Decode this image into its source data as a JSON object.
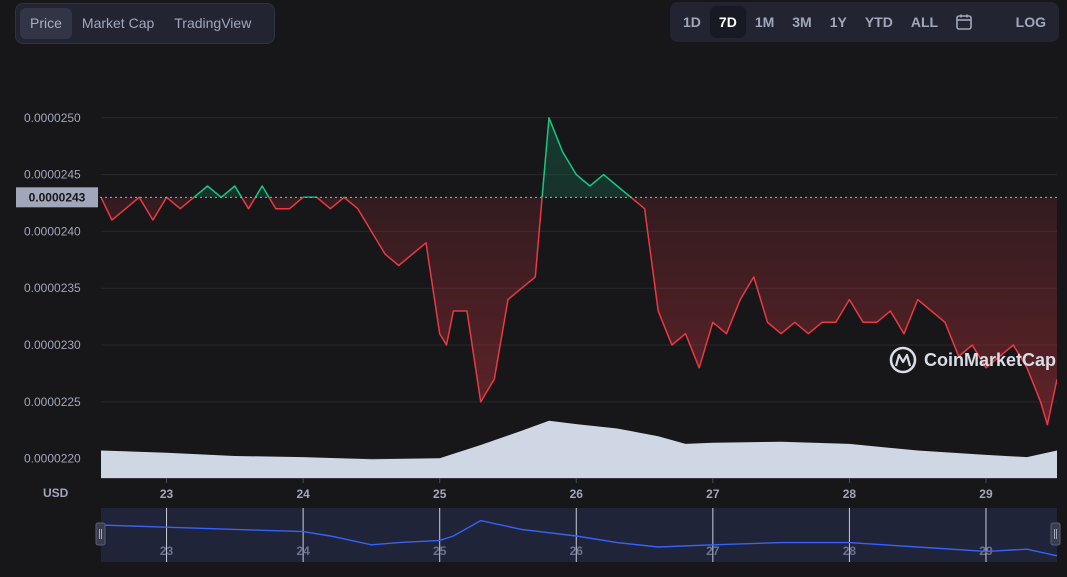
{
  "toolbar": {
    "tabs": [
      {
        "label": "Price",
        "active": true
      },
      {
        "label": "Market Cap",
        "active": false
      },
      {
        "label": "TradingView",
        "active": false
      }
    ],
    "ranges": [
      {
        "label": "1D",
        "active": false
      },
      {
        "label": "7D",
        "active": true
      },
      {
        "label": "1M",
        "active": false
      },
      {
        "label": "3M",
        "active": false
      },
      {
        "label": "1Y",
        "active": false
      },
      {
        "label": "YTD",
        "active": false
      },
      {
        "label": "ALL",
        "active": false
      }
    ],
    "calendar_icon": "calendar-icon",
    "log_label": "LOG"
  },
  "watermark": {
    "text": "CoinMarketCap",
    "icon": "coinmarketcap-logo-icon"
  },
  "colors": {
    "up": "#16c784",
    "down": "#ea3943",
    "volume": "#cfd6e4",
    "navigator": "#3861fb",
    "background": "#17171a"
  },
  "chart_data": {
    "type": "line",
    "currency_label": "USD",
    "current_price_label": "0.0000243",
    "baseline": 2.43e-05,
    "y_ticks": [
      "0.0000220",
      "0.0000225",
      "0.0000230",
      "0.0000235",
      "0.0000240",
      "0.0000245",
      "0.0000250"
    ],
    "ylim": [
      2.183e-05,
      2.535e-05
    ],
    "x_ticks": [
      "23",
      "24",
      "25",
      "26",
      "27",
      "28",
      "29"
    ],
    "xlim": [
      22.52,
      29.52
    ],
    "grid": true,
    "price_series": {
      "x": [
        22.52,
        22.6,
        22.7,
        22.8,
        22.9,
        23.0,
        23.1,
        23.2,
        23.3,
        23.4,
        23.5,
        23.6,
        23.7,
        23.8,
        23.9,
        24.0,
        24.1,
        24.2,
        24.3,
        24.4,
        24.5,
        24.6,
        24.7,
        24.8,
        24.9,
        25.0,
        25.05,
        25.1,
        25.2,
        25.3,
        25.35,
        25.4,
        25.5,
        25.6,
        25.7,
        25.75,
        25.8,
        25.9,
        26.0,
        26.1,
        26.2,
        26.3,
        26.4,
        26.5,
        26.6,
        26.7,
        26.8,
        26.9,
        27.0,
        27.1,
        27.2,
        27.3,
        27.4,
        27.5,
        27.6,
        27.7,
        27.8,
        27.9,
        28.0,
        28.1,
        28.2,
        28.3,
        28.4,
        28.5,
        28.6,
        28.7,
        28.8,
        28.9,
        29.0,
        29.1,
        29.2,
        29.3,
        29.4,
        29.45,
        29.52
      ],
      "y": [
        2.43e-05,
        2.41e-05,
        2.42e-05,
        2.43e-05,
        2.41e-05,
        2.43e-05,
        2.42e-05,
        2.43e-05,
        2.44e-05,
        2.43e-05,
        2.44e-05,
        2.42e-05,
        2.44e-05,
        2.42e-05,
        2.42e-05,
        2.43e-05,
        2.43e-05,
        2.42e-05,
        2.43e-05,
        2.42e-05,
        2.4e-05,
        2.38e-05,
        2.37e-05,
        2.38e-05,
        2.39e-05,
        2.31e-05,
        2.3e-05,
        2.33e-05,
        2.33e-05,
        2.25e-05,
        2.26e-05,
        2.27e-05,
        2.34e-05,
        2.35e-05,
        2.36e-05,
        2.43e-05,
        2.5e-05,
        2.47e-05,
        2.45e-05,
        2.44e-05,
        2.45e-05,
        2.44e-05,
        2.43e-05,
        2.42e-05,
        2.33e-05,
        2.3e-05,
        2.31e-05,
        2.28e-05,
        2.32e-05,
        2.31e-05,
        2.34e-05,
        2.36e-05,
        2.32e-05,
        2.31e-05,
        2.32e-05,
        2.31e-05,
        2.32e-05,
        2.32e-05,
        2.34e-05,
        2.32e-05,
        2.32e-05,
        2.33e-05,
        2.31e-05,
        2.34e-05,
        2.33e-05,
        2.32e-05,
        2.29e-05,
        2.3e-05,
        2.28e-05,
        2.29e-05,
        2.3e-05,
        2.28e-05,
        2.25e-05,
        2.23e-05,
        2.27e-05
      ]
    },
    "volume_series": {
      "x": [
        22.52,
        23.0,
        23.5,
        24.0,
        24.5,
        25.0,
        25.3,
        25.6,
        25.8,
        26.0,
        26.3,
        26.6,
        26.8,
        27.0,
        27.5,
        28.0,
        28.5,
        29.0,
        29.3,
        29.52
      ],
      "y": [
        25,
        23,
        20,
        19,
        17,
        18,
        30,
        43,
        52,
        49,
        45,
        38,
        31,
        32,
        33,
        31,
        25,
        21,
        19,
        25
      ]
    },
    "navigator_series": {
      "x": [
        22.52,
        23.0,
        23.5,
        24.0,
        24.2,
        24.5,
        24.7,
        25.0,
        25.1,
        25.3,
        25.6,
        26.0,
        26.3,
        26.6,
        27.0,
        27.5,
        28.0,
        28.5,
        29.0,
        29.3,
        29.52
      ],
      "y": [
        30,
        28,
        26,
        24,
        20,
        12,
        14,
        16,
        20,
        34,
        26,
        20,
        14,
        10,
        12,
        14,
        14,
        10,
        6,
        8,
        2
      ]
    }
  }
}
